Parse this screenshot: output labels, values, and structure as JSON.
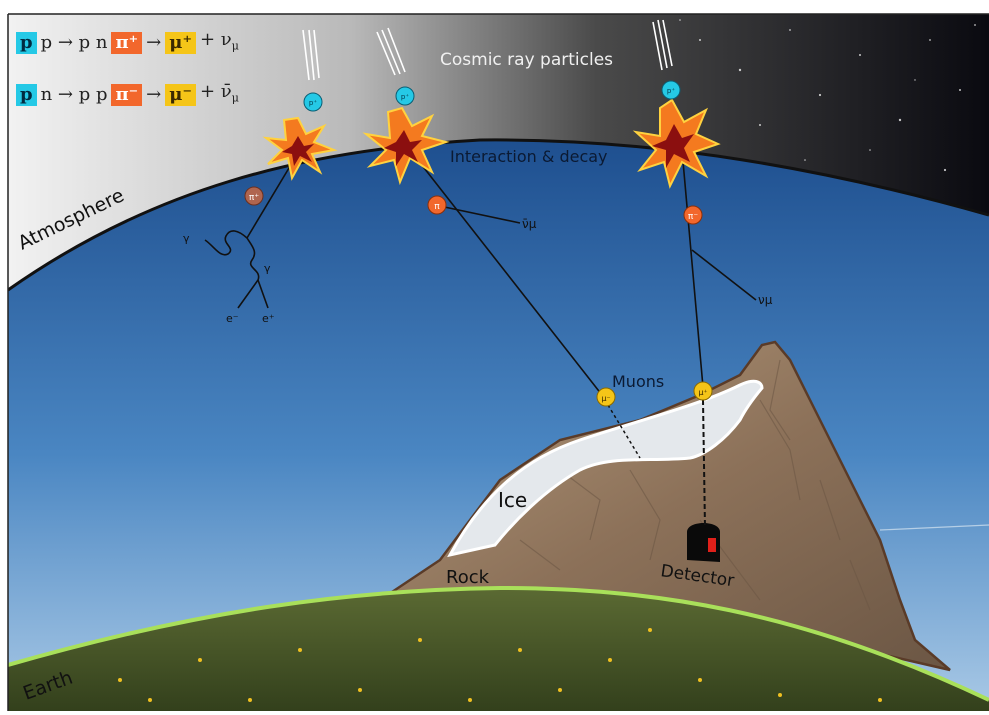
{
  "equations": [
    {
      "parts": [
        {
          "text": "p",
          "box": "blue"
        },
        {
          "text": "p → p n",
          "box": ""
        },
        {
          "text": "π⁺",
          "box": "orange"
        },
        {
          "text": "→",
          "box": ""
        },
        {
          "text": "μ⁺",
          "box": "yellow"
        },
        {
          "text": "+ ν",
          "box": ""
        },
        {
          "text": "μ",
          "box": "sub"
        }
      ]
    },
    {
      "parts": [
        {
          "text": "p",
          "box": "blue"
        },
        {
          "text": "n → p p",
          "box": ""
        },
        {
          "text": "π⁻",
          "box": "orange"
        },
        {
          "text": "→",
          "box": ""
        },
        {
          "text": "μ⁻",
          "box": "yellow"
        },
        {
          "text": "+ ν̄",
          "box": ""
        },
        {
          "text": "μ",
          "box": "sub"
        }
      ]
    }
  ],
  "labels": {
    "cosmic_rays": "Cosmic ray particles",
    "interaction": "Interaction & decay",
    "atmosphere": "Atmosphere",
    "muons": "Muons",
    "ice": "Ice",
    "rock": "Rock",
    "detector": "Detector",
    "earth": "Earth"
  },
  "particles": {
    "proton": "p⁺",
    "pion_plus": "π⁺",
    "pion": "π",
    "pion_minus": "π⁻",
    "muon_minus": "μ⁻",
    "muon_plus": "μ⁺",
    "antineutrino": "ν̄μ",
    "neutrino": "νμ",
    "gamma": "γ",
    "electron_minus": "e⁻",
    "electron_plus": "e⁺"
  },
  "colors": {
    "proton": "#25c9e6",
    "pion": "#f2672c",
    "muon": "#f5c518",
    "sky": "#3f78b8",
    "atmosphere": "#c8c8c8",
    "space": "#0b0b12",
    "rock": "#8a6e55",
    "ice": "#e4e8ec",
    "grass": "#4a5a2a",
    "earth_edge": "#a9e05a"
  }
}
